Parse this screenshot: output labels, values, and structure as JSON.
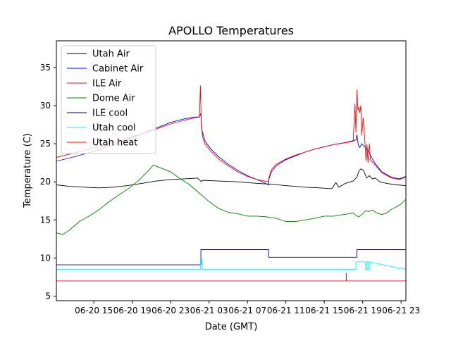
{
  "chart_data": {
    "type": "line",
    "title": "APOLLO Temperatures",
    "xlabel": "Date (GMT)",
    "ylabel": "Temperature (C)",
    "xlim": [
      11.1,
      47.5
    ],
    "ylim": [
      4.4,
      38.5
    ],
    "x_unit": "hours since 06-20 00:00 GMT",
    "x_ticks": [
      {
        "value": 15,
        "label": "06-20 15"
      },
      {
        "value": 19,
        "label": "06-20 19"
      },
      {
        "value": 23,
        "label": "06-20 23"
      },
      {
        "value": 27,
        "label": "06-21 03"
      },
      {
        "value": 31,
        "label": "06-21 07"
      },
      {
        "value": 35,
        "label": "06-21 11"
      },
      {
        "value": 39,
        "label": "06-21 15"
      },
      {
        "value": 43,
        "label": "06-21 19"
      },
      {
        "value": 47,
        "label": "06-21 23"
      }
    ],
    "y_ticks": [
      {
        "value": 5,
        "label": "5"
      },
      {
        "value": 10,
        "label": "10"
      },
      {
        "value": 15,
        "label": "15"
      },
      {
        "value": 20,
        "label": "20"
      },
      {
        "value": 25,
        "label": "25"
      },
      {
        "value": 30,
        "label": "30"
      },
      {
        "value": 35,
        "label": "35"
      }
    ],
    "legend_position": "top-left",
    "series": [
      {
        "name": "Utah Air",
        "color": "#000000",
        "x": [
          11.1,
          12.5,
          14,
          15.5,
          17,
          18.5,
          20,
          21.5,
          23,
          24.5,
          25.8,
          26.2,
          26.3,
          28,
          30,
          32,
          33.3,
          35,
          37,
          38.5,
          39.8,
          40.2,
          40.5,
          41.2,
          42,
          42.4,
          42.6,
          42.8,
          43.1,
          43.4,
          43.7,
          44,
          44.3,
          44.8,
          45.5,
          46.5,
          47.5
        ],
        "y": [
          19.6,
          19.4,
          19.3,
          19.2,
          19.3,
          19.5,
          19.8,
          20.1,
          20.3,
          20.4,
          20.5,
          20,
          20.2,
          20.1,
          20,
          19.8,
          19.7,
          19.5,
          19.3,
          19.2,
          19.1,
          19.9,
          19.3,
          19.8,
          20.1,
          20.6,
          21.4,
          21.7,
          21.5,
          20.5,
          20.8,
          20.4,
          20.5,
          20,
          19.8,
          19.6,
          19.5
        ]
      },
      {
        "name": "Cabinet Air",
        "color": "#0000ff",
        "x": [
          11.1,
          13,
          15,
          17,
          19,
          21,
          23,
          24.5,
          25.5,
          26,
          26.15,
          26.25,
          26.6,
          27.2,
          28,
          29,
          30,
          31,
          32,
          33.2,
          33.25,
          33.5,
          34,
          35,
          36,
          37,
          38,
          39,
          40,
          41,
          42,
          42.3,
          42.4,
          42.55,
          42.7,
          42.9,
          43.2,
          43.5,
          43.8,
          44.3,
          45,
          46,
          46.8,
          47.5
        ],
        "y": [
          22.7,
          23.3,
          24,
          24.8,
          25.8,
          26.8,
          27.8,
          28.3,
          28.5,
          28.5,
          29,
          26.8,
          25.3,
          24.3,
          23.3,
          22.3,
          21.5,
          20.8,
          20.3,
          19.6,
          20.4,
          21.3,
          22.1,
          22.9,
          23.4,
          23.9,
          24.3,
          24.6,
          24.9,
          25.1,
          25.4,
          25.5,
          26.2,
          24.8,
          24.5,
          25,
          24.6,
          24.2,
          23.5,
          22.4,
          21.3,
          20.6,
          20.4,
          20.7
        ]
      },
      {
        "name": "ILE Air",
        "color": "#ff0000",
        "x": [
          11.1,
          13,
          15,
          17,
          19,
          21,
          23,
          24.5,
          25.5,
          26,
          26.1,
          26.2,
          26.35,
          26.6,
          27.2,
          28,
          29,
          30,
          31,
          32,
          33.2,
          33.25,
          33.5,
          34,
          35,
          36,
          37,
          38,
          39,
          40,
          41,
          42,
          42.2,
          42.3,
          42.4,
          42.5,
          42.6,
          42.7,
          42.8,
          42.9,
          43.05,
          43.2,
          43.35,
          43.45,
          43.55,
          43.7,
          43.8,
          44.3,
          45,
          46,
          46.8,
          47.5
        ],
        "y": [
          23.2,
          23.8,
          24.4,
          25.1,
          25.9,
          26.7,
          27.6,
          28.1,
          28.4,
          28.5,
          32.6,
          27.2,
          25.8,
          24.9,
          24,
          23,
          22.1,
          21.3,
          20.7,
          20.3,
          20,
          20.6,
          21.6,
          22.3,
          23,
          23.5,
          23.9,
          24.3,
          24.6,
          24.9,
          25.1,
          25.3,
          30.2,
          26.5,
          32.1,
          29.4,
          29.8,
          29.1,
          30,
          26.1,
          28.4,
          25.9,
          22.8,
          24.9,
          22.5,
          25,
          22.9,
          22.2,
          21.2,
          20.5,
          20.3,
          20.6
        ]
      },
      {
        "name": "Dome Air",
        "color": "#008000",
        "x": [
          11.1,
          11.8,
          12.5,
          13.5,
          14.5,
          15.5,
          16.5,
          17.5,
          18.5,
          19.5,
          20.5,
          21.2,
          22,
          23,
          24,
          25,
          26,
          27,
          28,
          29,
          30,
          31,
          32,
          33,
          34,
          35,
          36,
          37,
          38,
          39,
          40,
          41,
          42,
          42.3,
          42.6,
          42.8,
          43,
          43.3,
          43.6,
          44,
          44.5,
          45,
          45.5,
          46,
          46.5,
          47,
          47.5
        ],
        "y": [
          13.3,
          13.1,
          13.7,
          14.8,
          15.5,
          16.3,
          17.3,
          18.2,
          19,
          20,
          21.2,
          22.2,
          21.8,
          21.3,
          20.4,
          19.6,
          18.5,
          17.4,
          16.5,
          16,
          15.8,
          15.5,
          15.5,
          15.4,
          15.2,
          14.8,
          14.8,
          15,
          15.2,
          15.5,
          15.5,
          15.7,
          15.9,
          15.6,
          15.4,
          15.6,
          15.8,
          16.2,
          16.1,
          16.3,
          15.9,
          15.7,
          15.9,
          16.4,
          16.7,
          17.1,
          17.7
        ]
      },
      {
        "name": "ILE cool",
        "color": "#00008b",
        "x": [
          11.1,
          26.15,
          26.15,
          33.2,
          33.2,
          42.4,
          42.4,
          47.5
        ],
        "y": [
          9.1,
          9.1,
          11.1,
          11.1,
          10.1,
          10.1,
          11.1,
          11.1
        ]
      },
      {
        "name": "Utah cool",
        "color": "#00ffff",
        "x": [
          11.1,
          26.1,
          26.1,
          26.3,
          26.3,
          42.3,
          42.3,
          42.5,
          42.5,
          43.3,
          43.3,
          43.45,
          43.45,
          43.55,
          43.55,
          43.7,
          43.7,
          47.5
        ],
        "y": [
          8.5,
          8.5,
          9.8,
          9.8,
          8.5,
          8.5,
          9.5,
          9.5,
          9.5,
          9.5,
          8.5,
          8.5,
          9.5,
          9.5,
          8.5,
          8.5,
          9.5,
          8.5
        ]
      },
      {
        "name": "Utah heat",
        "color": "#ff0000",
        "x": [
          11.1,
          41.3,
          41.3,
          41.3,
          47.5
        ],
        "y": [
          7,
          7,
          8,
          7,
          7
        ]
      }
    ]
  }
}
